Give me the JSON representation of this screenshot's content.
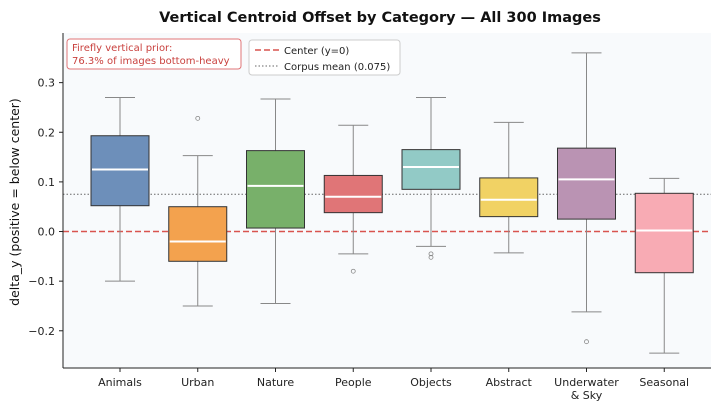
{
  "chart_data": {
    "type": "box",
    "title": "Vertical Centroid Offset by Category — All 300 Images",
    "xlabel": "",
    "ylabel": "delta_y  (positive = below center)",
    "ylim": [
      -0.275,
      0.4
    ],
    "yticks": [
      -0.2,
      -0.1,
      0.0,
      0.1,
      0.2,
      0.3
    ],
    "ytick_labels": [
      "−0.2",
      "−0.1",
      "0.0",
      "0.1",
      "0.2",
      "0.3"
    ],
    "grid": false,
    "categories": [
      "Animals",
      "Urban",
      "Nature",
      "People",
      "Objects",
      "Abstract",
      "Underwater\n& Sky",
      "Seasonal"
    ],
    "boxes": [
      {
        "category": "Animals",
        "whisker_low": -0.1,
        "q1": 0.052,
        "median": 0.125,
        "q3": 0.193,
        "whisker_high": 0.27,
        "outliers": [],
        "color": "#6d8fba"
      },
      {
        "category": "Urban",
        "whisker_low": -0.15,
        "q1": -0.06,
        "median": -0.02,
        "q3": 0.05,
        "whisker_high": 0.153,
        "outliers": [
          0.228
        ],
        "color": "#f3a24e"
      },
      {
        "category": "Nature",
        "whisker_low": -0.145,
        "q1": 0.007,
        "median": 0.092,
        "q3": 0.163,
        "whisker_high": 0.267,
        "outliers": [],
        "color": "#78b06a"
      },
      {
        "category": "People",
        "whisker_low": -0.045,
        "q1": 0.038,
        "median": 0.07,
        "q3": 0.113,
        "whisker_high": 0.214,
        "outliers": [
          -0.08
        ],
        "color": "#e07577"
      },
      {
        "category": "Objects",
        "whisker_low": -0.03,
        "q1": 0.085,
        "median": 0.13,
        "q3": 0.165,
        "whisker_high": 0.27,
        "outliers": [
          -0.045,
          -0.052
        ],
        "color": "#92cac6"
      },
      {
        "category": "Abstract",
        "whisker_low": -0.043,
        "q1": 0.03,
        "median": 0.064,
        "q3": 0.108,
        "whisker_high": 0.22,
        "outliers": [],
        "color": "#f1d264"
      },
      {
        "category": "Underwater\n& Sky",
        "whisker_low": -0.162,
        "q1": 0.025,
        "median": 0.105,
        "q3": 0.168,
        "whisker_high": 0.36,
        "outliers": [
          -0.222
        ],
        "color": "#ba93b3"
      },
      {
        "category": "Seasonal",
        "whisker_low": -0.245,
        "q1": -0.083,
        "median": 0.002,
        "q3": 0.077,
        "whisker_high": 0.107,
        "outliers": [],
        "color": "#f8abb4"
      }
    ],
    "reference_lines": [
      {
        "label": "Center (y=0)",
        "y": 0.0,
        "style": "dashed",
        "color": "#d9544f"
      },
      {
        "label": "Corpus mean (0.075)",
        "y": 0.075,
        "style": "dotted",
        "color": "#666666"
      }
    ],
    "legend_position": "top-left",
    "annotation": {
      "lines": [
        "Firefly vertical prior:",
        "76.3% of images bottom-heavy"
      ],
      "color": "#c9413e"
    },
    "colors": {
      "background": "#f8fafc",
      "median": "#ffffff",
      "whisker": "#888888"
    }
  }
}
